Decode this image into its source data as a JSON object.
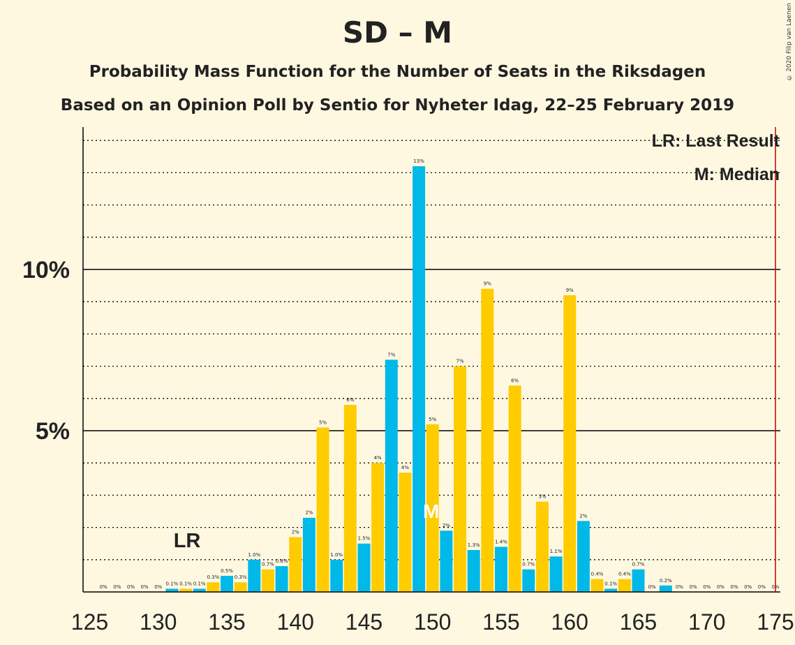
{
  "chart_data": {
    "type": "bar",
    "title": "SD – M",
    "subtitle1": "Probability Mass Function for the Number of Seats in the Riksdagen",
    "subtitle2": "Based on an Opinion Poll by Sentio for Nyheter Idag, 22–25 February 2019",
    "xlim": [
      125,
      175
    ],
    "ylim": [
      0,
      14
    ],
    "x_ticks": [
      125,
      130,
      135,
      140,
      145,
      150,
      155,
      160,
      165,
      170,
      175
    ],
    "y_ticks": [
      {
        "value": 5,
        "label": "5%"
      },
      {
        "value": 10,
        "label": "10%"
      }
    ],
    "x": [
      126,
      127,
      128,
      129,
      130,
      131,
      132,
      133,
      134,
      135,
      136,
      137,
      138,
      139,
      140,
      141,
      142,
      143,
      144,
      145,
      146,
      147,
      148,
      149,
      150,
      151,
      152,
      153,
      154,
      155,
      156,
      157,
      158,
      159,
      160,
      161,
      162,
      163,
      164,
      165,
      166,
      167,
      168,
      169,
      170,
      171,
      172,
      173,
      174,
      175
    ],
    "values": [
      0,
      0,
      0,
      0,
      0,
      0.1,
      0.1,
      0.1,
      0.3,
      0.5,
      0.3,
      1.0,
      0.7,
      0.8,
      1.7,
      2.3,
      5.1,
      1.0,
      5.8,
      1.5,
      4.0,
      7.2,
      3.7,
      13.2,
      5.2,
      1.9,
      7.0,
      1.3,
      9.4,
      1.4,
      6.4,
      0.7,
      2.8,
      1.1,
      9.2,
      2.2,
      0.4,
      0.1,
      0.4,
      0.7,
      0,
      0.2,
      0,
      0,
      0,
      0,
      0,
      0,
      0,
      0
    ],
    "labels": [
      "0%",
      "0%",
      "0%",
      "0%",
      "0%",
      "0.1%",
      "0.1%",
      "0.1%",
      "0.3%",
      "0.5%",
      "0.3%",
      "1.0%",
      "0.7%",
      "0.8%",
      "2%",
      "2%",
      "5%",
      "1.0%",
      "6%",
      "1.5%",
      "4%",
      "7%",
      "4%",
      "13%",
      "5%",
      "2%",
      "7%",
      "1.3%",
      "9%",
      "1.4%",
      "6%",
      "0.7%",
      "3%",
      "1.1%",
      "9%",
      "2%",
      "0.4%",
      "0.1%",
      "0.4%",
      "0.7%",
      "0%",
      "0.2%",
      "0%",
      "0%",
      "0%",
      "0%",
      "0%",
      "0%",
      "0%",
      "0%"
    ],
    "colors": {
      "odd": "#00B9E8",
      "even": "#FFCC00",
      "majority_line": "#C00000",
      "grid": "#000000"
    },
    "majority_seat": 175,
    "last_result": {
      "seat": 132,
      "label": "LR"
    },
    "median": {
      "seat": 150,
      "label": "M"
    },
    "legend": {
      "lr": "LR: Last Result",
      "median": "M: Median",
      "placement": "top-right"
    },
    "grid": true
  },
  "copyright": "© 2020 Filip van Laenen"
}
